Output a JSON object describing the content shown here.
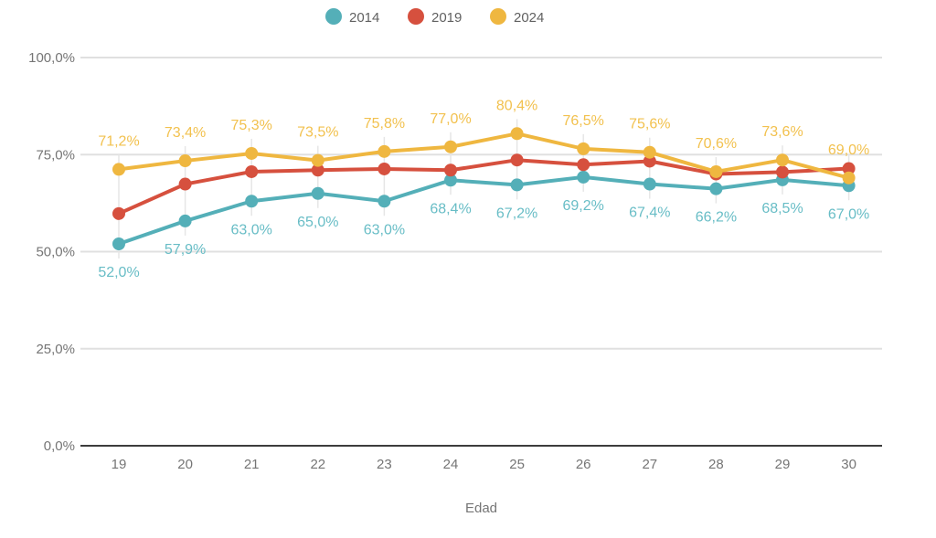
{
  "chart_data": {
    "type": "line",
    "title": "",
    "xlabel": "Edad",
    "ylabel": "",
    "x_categories": [
      "19",
      "20",
      "21",
      "22",
      "23",
      "24",
      "25",
      "26",
      "27",
      "28",
      "29",
      "30"
    ],
    "y_ticks": [
      {
        "value": 0,
        "label": "0,0%"
      },
      {
        "value": 25,
        "label": "25,0%"
      },
      {
        "value": 50,
        "label": "50,0%"
      },
      {
        "value": 75,
        "label": "75,0%"
      },
      {
        "value": 100,
        "label": "100,0%"
      }
    ],
    "ylim": [
      0,
      100
    ],
    "grid": true,
    "legend_position": "top-center",
    "series": [
      {
        "name": "2014",
        "color": "#54AFB8",
        "label_color": "#68BDC6",
        "label_side": "below",
        "labels_visible": true,
        "values": [
          52.0,
          57.9,
          63.0,
          65.0,
          63.0,
          68.4,
          67.2,
          69.2,
          67.4,
          66.2,
          68.5,
          67.0
        ],
        "labels": [
          "52,0%",
          "57,9%",
          "63,0%",
          "65,0%",
          "63,0%",
          "68,4%",
          "67,2%",
          "69,2%",
          "67,4%",
          "66,2%",
          "68,5%",
          "67,0%"
        ]
      },
      {
        "name": "2019",
        "color": "#D6503E",
        "label_side": "none",
        "labels_visible": false,
        "values_estimated_from_gridlines": true,
        "values": [
          59.8,
          67.4,
          70.6,
          71.0,
          71.3,
          71.0,
          73.6,
          72.4,
          73.3,
          70.0,
          70.5,
          71.4
        ],
        "labels": []
      },
      {
        "name": "2024",
        "color": "#EFB740",
        "label_color": "#F2C14E",
        "label_side": "above",
        "labels_visible": true,
        "values": [
          71.2,
          73.4,
          75.3,
          73.5,
          75.8,
          77.0,
          80.4,
          76.5,
          75.6,
          70.6,
          73.6,
          69.0
        ],
        "labels": [
          "71,2%",
          "73,4%",
          "75,3%",
          "73,5%",
          "75,8%",
          "77,0%",
          "80,4%",
          "76,5%",
          "75,6%",
          "70,6%",
          "73,6%",
          "69,0%"
        ]
      }
    ],
    "colors": {
      "axis_text": "#757575",
      "legend_text": "#616161",
      "gridline": "#E0E0E0",
      "column_guide": "#E6E6E6",
      "x_axis_line": "#3C3C3C",
      "background": "#FFFFFF"
    }
  }
}
